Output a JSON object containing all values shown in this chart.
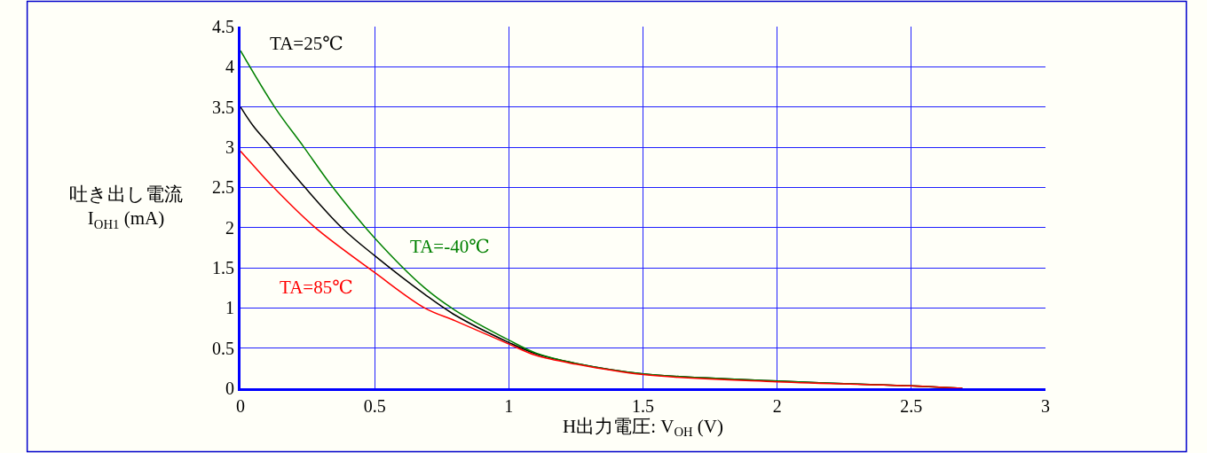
{
  "chart_data": {
    "type": "line",
    "xlabel": "H出力電圧: V$_{OH}$ (V)",
    "ylabel": "吐き出し電流\nI$_{OH1}$ (mA)",
    "xlim": [
      0,
      3
    ],
    "xticks": [
      0,
      0.5,
      1,
      1.5,
      2,
      2.5,
      3
    ],
    "ylim": [
      0,
      4.5
    ],
    "yticks": [
      0,
      0.5,
      1,
      1.5,
      2,
      2.5,
      3,
      3.5,
      4,
      4.5
    ],
    "grid": true,
    "legend": false,
    "marker": "none",
    "line_style": "solid",
    "series": [
      {
        "name": "TA=25℃",
        "color": "#000000",
        "x": [
          0,
          0.046,
          0.112,
          0.24,
          0.377,
          0.5,
          0.686,
          0.8,
          1,
          1.1,
          1.25,
          1.5,
          2,
          2.5,
          2.69
        ],
        "values": [
          3.5,
          3.27,
          3.01,
          2.5,
          2.0,
          1.65,
          1.17,
          0.91,
          0.57,
          0.43,
          0.31,
          0.18,
          0.09,
          0.03,
          0
        ]
      },
      {
        "name": "TA=-40℃",
        "color": "#008000",
        "x": [
          0,
          0.129,
          0.234,
          0.344,
          0.5,
          0.686,
          0.8,
          1,
          1.1,
          1.25,
          1.5,
          2,
          2.5,
          2.69
        ],
        "values": [
          4.2,
          3.49,
          3.01,
          2.5,
          1.87,
          1.25,
          0.97,
          0.6,
          0.44,
          0.31,
          0.18,
          0.09,
          0.03,
          0
        ]
      },
      {
        "name": "TA=85℃",
        "color": "#ff0000",
        "x": [
          0,
          0.046,
          0.123,
          0.278,
          0.5,
          0.686,
          0.8,
          1,
          1.1,
          1.25,
          1.5,
          2,
          2.5,
          2.69
        ],
        "values": [
          2.95,
          2.78,
          2.5,
          2.0,
          1.44,
          1.0,
          0.84,
          0.55,
          0.41,
          0.3,
          0.17,
          0.08,
          0.03,
          0
        ]
      }
    ]
  }
}
